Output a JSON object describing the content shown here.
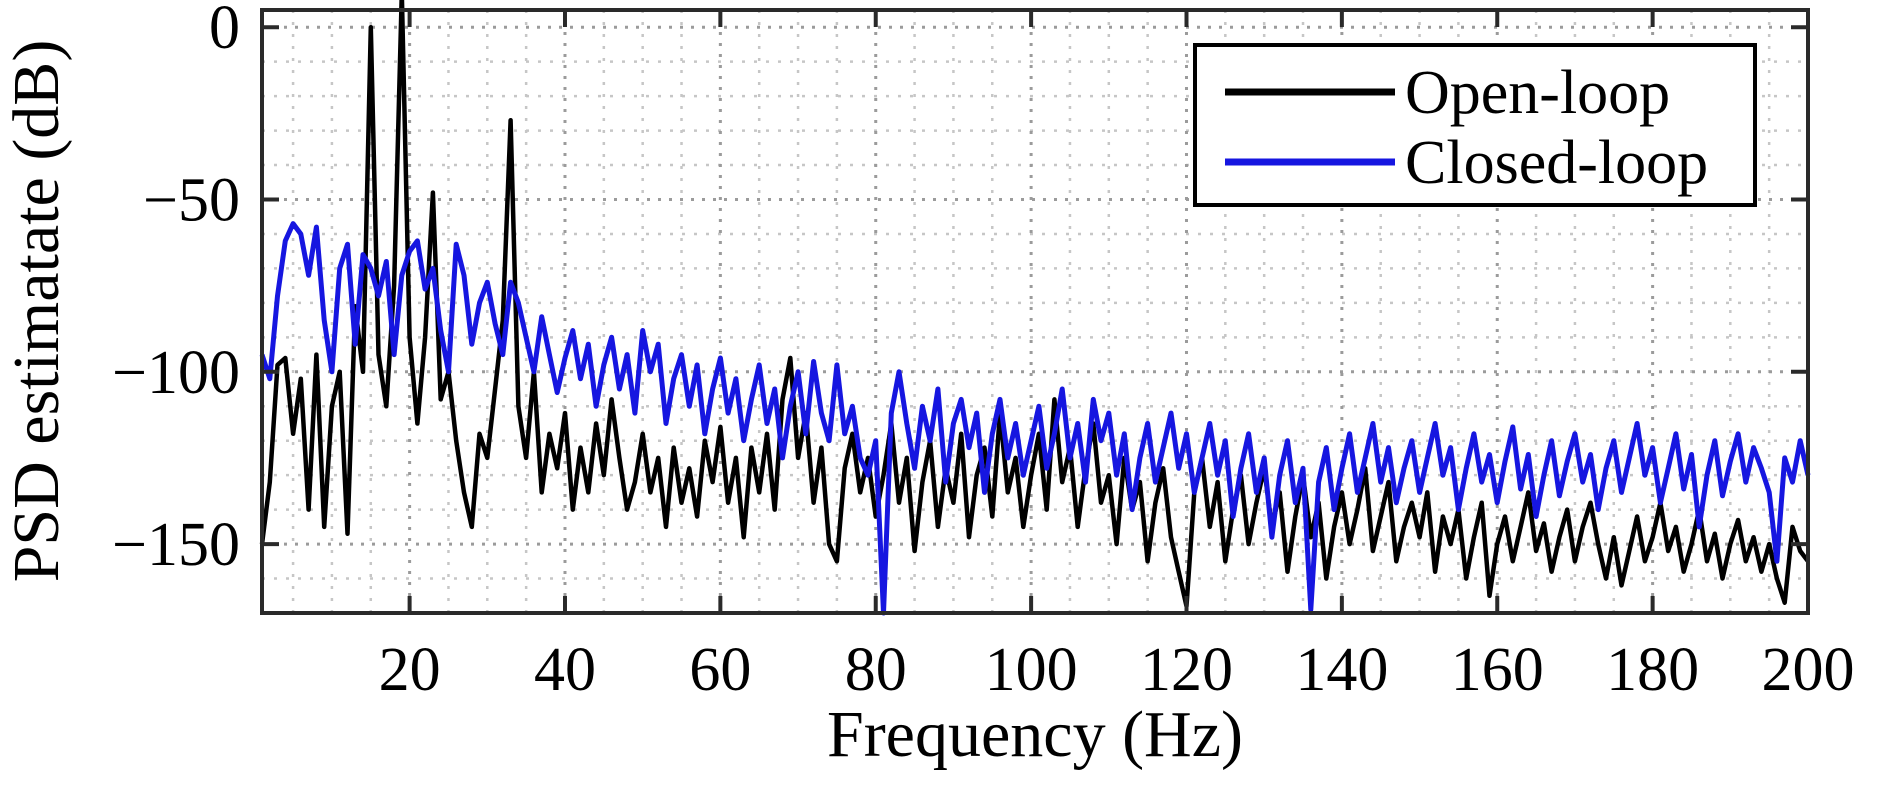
{
  "figure": {
    "background": "#ffffff",
    "axis_color": "#2a2a2a",
    "major_grid_color": "#9b9b9b",
    "minor_grid_color": "#c6c6c6"
  },
  "chart_data": {
    "type": "line",
    "title": "",
    "xlabel": "Frequency (Hz)",
    "ylabel": "PSD estimatate (dB)",
    "xlim": [
      1,
      200
    ],
    "ylim": [
      -170,
      5
    ],
    "x_ticks": [
      20,
      40,
      60,
      80,
      100,
      120,
      140,
      160,
      180,
      200
    ],
    "y_ticks": [
      0,
      -50,
      -100,
      -150
    ],
    "y_tick_labels": [
      "0",
      "−50",
      "−100",
      "−150"
    ],
    "x_minor_step": 5,
    "y_minor_step": 10,
    "grid": true,
    "minor_grid": true,
    "legend_position": "top-right",
    "x_start": 1,
    "x_step": 1,
    "series": [
      {
        "name": "Open-loop",
        "color": "#000000",
        "values": [
          -150,
          -132,
          -98,
          -96,
          -118,
          -102,
          -140,
          -95,
          -145,
          -110,
          -100,
          -147,
          -81,
          -100,
          0,
          -95,
          -110,
          -75,
          10,
          -90,
          -115,
          -90,
          -48,
          -108,
          -100,
          -120,
          -135,
          -145,
          -118,
          -125,
          -105,
          -85,
          -27,
          -110,
          -125,
          -100,
          -135,
          -118,
          -128,
          -112,
          -140,
          -122,
          -135,
          -115,
          -130,
          -108,
          -125,
          -140,
          -132,
          -118,
          -135,
          -125,
          -145,
          -122,
          -138,
          -128,
          -142,
          -120,
          -132,
          -116,
          -138,
          -125,
          -148,
          -122,
          -135,
          -118,
          -140,
          -108,
          -96,
          -125,
          -112,
          -138,
          -122,
          -150,
          -155,
          -128,
          -118,
          -135,
          -125,
          -142,
          -130,
          -115,
          -138,
          -125,
          -152,
          -132,
          -120,
          -145,
          -128,
          -138,
          -118,
          -148,
          -130,
          -122,
          -142,
          -112,
          -135,
          -125,
          -145,
          -130,
          -118,
          -140,
          -108,
          -132,
          -122,
          -145,
          -128,
          -115,
          -138,
          -130,
          -150,
          -125,
          -140,
          -132,
          -155,
          -138,
          -128,
          -148,
          -158,
          -168,
          -135,
          -125,
          -145,
          -132,
          -155,
          -140,
          -130,
          -150,
          -138,
          -128,
          -145,
          -135,
          -158,
          -142,
          -130,
          -148,
          -138,
          -160,
          -145,
          -135,
          -150,
          -140,
          -128,
          -152,
          -142,
          -132,
          -155,
          -145,
          -138,
          -148,
          -135,
          -158,
          -142,
          -150,
          -140,
          -160,
          -148,
          -138,
          -165,
          -150,
          -142,
          -155,
          -145,
          -135,
          -152,
          -144,
          -158,
          -148,
          -140,
          -155,
          -145,
          -138,
          -150,
          -160,
          -148,
          -162,
          -152,
          -142,
          -155,
          -148,
          -138,
          -152,
          -145,
          -158,
          -150,
          -140,
          -155,
          -147,
          -160,
          -150,
          -143,
          -155,
          -148,
          -158,
          -150,
          -160,
          -167,
          -145,
          -152,
          -155
        ]
      },
      {
        "name": "Closed-loop",
        "color": "#1616e0",
        "values": [
          -95,
          -102,
          -78,
          -62,
          -57,
          -60,
          -72,
          -58,
          -85,
          -100,
          -70,
          -63,
          -92,
          -66,
          -70,
          -78,
          -68,
          -95,
          -72,
          -65,
          -62,
          -76,
          -70,
          -88,
          -100,
          -63,
          -72,
          -92,
          -80,
          -74,
          -86,
          -95,
          -74,
          -80,
          -90,
          -100,
          -84,
          -95,
          -106,
          -96,
          -88,
          -102,
          -92,
          -110,
          -98,
          -90,
          -105,
          -95,
          -112,
          -88,
          -100,
          -92,
          -115,
          -102,
          -95,
          -110,
          -98,
          -118,
          -105,
          -96,
          -112,
          -102,
          -120,
          -108,
          -98,
          -115,
          -105,
          -125,
          -110,
          -100,
          -118,
          -97,
          -112,
          -120,
          -98,
          -118,
          -110,
          -125,
          -130,
          -120,
          -170,
          -112,
          -100,
          -115,
          -128,
          -110,
          -120,
          -105,
          -132,
          -115,
          -108,
          -122,
          -112,
          -135,
          -118,
          -108,
          -125,
          -115,
          -130,
          -120,
          -110,
          -128,
          -118,
          -105,
          -125,
          -115,
          -132,
          -108,
          -120,
          -112,
          -130,
          -118,
          -140,
          -125,
          -115,
          -132,
          -122,
          -112,
          -128,
          -118,
          -135,
          -125,
          -115,
          -130,
          -120,
          -142,
          -128,
          -118,
          -135,
          -125,
          -148,
          -130,
          -120,
          -138,
          -128,
          -169,
          -132,
          -122,
          -140,
          -128,
          -118,
          -135,
          -125,
          -115,
          -132,
          -122,
          -138,
          -128,
          -120,
          -135,
          -125,
          -115,
          -130,
          -122,
          -140,
          -128,
          -118,
          -132,
          -124,
          -138,
          -126,
          -116,
          -134,
          -124,
          -142,
          -130,
          -120,
          -136,
          -126,
          -118,
          -132,
          -124,
          -140,
          -128,
          -120,
          -135,
          -125,
          -115,
          -130,
          -122,
          -138,
          -128,
          -118,
          -134,
          -124,
          -145,
          -130,
          -120,
          -136,
          -126,
          -118,
          -132,
          -122,
          -128,
          -135,
          -155,
          -125,
          -132,
          -120,
          -130
        ]
      }
    ]
  }
}
